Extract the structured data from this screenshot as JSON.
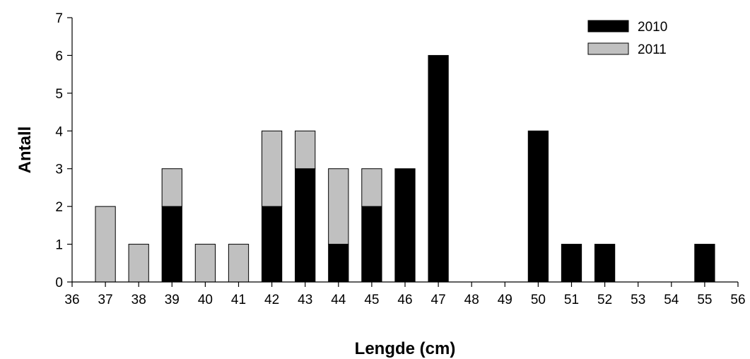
{
  "chart_data": {
    "type": "bar",
    "stacked": true,
    "title": "",
    "xlabel": "Lengde (cm)",
    "ylabel": "Antall",
    "x_ticks": [
      "36",
      "37",
      "38",
      "39",
      "40",
      "41",
      "42",
      "43",
      "44",
      "45",
      "46",
      "47",
      "48",
      "49",
      "50",
      "51",
      "52",
      "53",
      "54",
      "55",
      "56"
    ],
    "y_ticks": [
      "0",
      "1",
      "2",
      "3",
      "4",
      "5",
      "6",
      "7"
    ],
    "ylim": [
      0,
      7
    ],
    "grid": false,
    "legend_position": "top-right",
    "categories": [
      "37",
      "38",
      "39",
      "40",
      "41",
      "42",
      "43",
      "44",
      "45",
      "46",
      "47",
      "48",
      "49",
      "50",
      "51",
      "52",
      "53",
      "54",
      "55"
    ],
    "series": [
      {
        "name": "2010",
        "color": "#000000",
        "values": [
          0,
          0,
          2,
          0,
          0,
          2,
          3,
          1,
          2,
          3,
          6,
          0,
          0,
          4,
          1,
          1,
          0,
          0,
          1
        ]
      },
      {
        "name": "2011",
        "color": "#c0c0c0",
        "values": [
          2,
          1,
          1,
          1,
          1,
          2,
          1,
          2,
          1,
          0,
          0,
          0,
          0,
          0,
          0,
          0,
          0,
          0,
          0
        ]
      }
    ]
  }
}
